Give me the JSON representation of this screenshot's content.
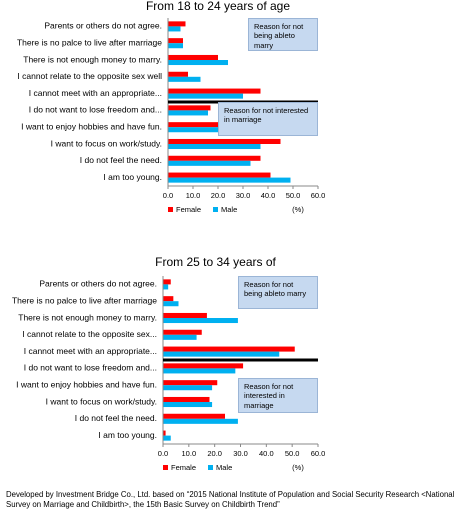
{
  "chart_data": [
    {
      "type": "barh",
      "title": "From 18 to 24 years of age",
      "categories": [
        "Parents or others do not agree.",
        "There is no palce to live after marriage",
        "There is not enough money to marry.",
        "I cannot relate to the opposite sex well",
        "I cannot meet with an appropriate...",
        "I do not want to lose freedom and...",
        "I want to enjoy hobbies and have fun.",
        "I want to focus on work/study.",
        "I do not feel the need.",
        "I am too young."
      ],
      "series": [
        {
          "name": "Female",
          "color": "#ff0000",
          "values": [
            7,
            6,
            20,
            8,
            37,
            17,
            21,
            45,
            37,
            41
          ]
        },
        {
          "name": "Male",
          "color": "#00b0f0",
          "values": [
            5,
            6,
            24,
            13,
            30,
            16,
            21,
            37,
            33,
            49
          ]
        }
      ],
      "xlim": [
        0,
        60
      ],
      "xticks": [
        {
          "value": 0,
          "label": "0.0"
        },
        {
          "value": 10,
          "label": "10.0"
        },
        {
          "value": 20,
          "label": "20.0"
        },
        {
          "value": 30,
          "label": "30.0"
        },
        {
          "value": 40,
          "label": "40.0"
        },
        {
          "value": 50,
          "label": "50.0"
        },
        {
          "value": 60,
          "label": "60.0"
        }
      ],
      "xlabel": "(%)",
      "annotations": [
        "Reason for not being ableto marry",
        "Reason for not interested in marriage"
      ]
    },
    {
      "type": "barh",
      "title": "From 25 to 34 years of",
      "categories": [
        "Parents or others do not agree.",
        "There is no palce to live after marriage",
        "There is not enough money to marry.",
        "I cannot relate to the opposite sex...",
        "I cannot meet with an appropriate...",
        "I do not want to lose freedom and...",
        "I want to enjoy hobbies and have fun.",
        "I want to focus on work/study.",
        "I do not feel the need.",
        "I am too young."
      ],
      "series": [
        {
          "name": "Female",
          "color": "#ff0000",
          "values": [
            3,
            4,
            17,
            15,
            51,
            31,
            21,
            18,
            24,
            1
          ]
        },
        {
          "name": "Male",
          "color": "#00b0f0",
          "values": [
            2,
            6,
            29,
            13,
            45,
            28,
            19,
            19,
            29,
            3
          ]
        }
      ],
      "xlim": [
        0,
        60
      ],
      "xticks": [
        {
          "value": 0,
          "label": "0.0"
        },
        {
          "value": 10,
          "label": "10.0"
        },
        {
          "value": 20,
          "label": "20.0"
        },
        {
          "value": 30,
          "label": "30.0"
        },
        {
          "value": 40,
          "label": "40.0"
        },
        {
          "value": 50,
          "label": "50.0"
        },
        {
          "value": 60,
          "label": "60.0"
        }
      ],
      "xlabel": "(%)",
      "annotations": [
        "Reason for not being ableto marry",
        "Reason for not interested in marriage"
      ]
    }
  ],
  "footer": "Developed by Investment Bridge Co., Ltd. based on “2015 National Institute of Population and Social Security Research <National Survey on Marriage and Childbirth>, the 15th Basic Survey on Childbirth Trend”"
}
